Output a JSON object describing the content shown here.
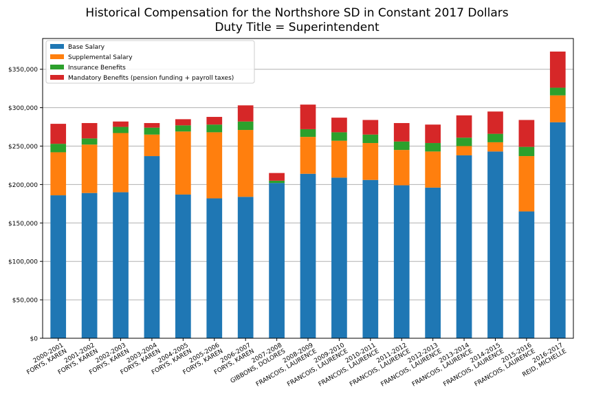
{
  "chart_data": {
    "type": "bar",
    "stacked": true,
    "title": "Historical Compensation for the Northshore SD in Constant 2017 Dollars",
    "subtitle": "Duty Title = Superintendent",
    "xlabel": "",
    "ylabel": "",
    "ylim": [
      0,
      390000
    ],
    "yticks": [
      0,
      50000,
      100000,
      150000,
      200000,
      250000,
      300000,
      350000
    ],
    "ytick_labels": [
      "$0",
      "$50,000",
      "$100,000",
      "$150,000",
      "$200,000",
      "$250,000",
      "$300,000",
      "$350,000"
    ],
    "grid": "horizontal",
    "legend_position": "top-left",
    "categories": [
      [
        "2000-2001",
        "FORYS, KAREN"
      ],
      [
        "2001-2002",
        "FORYS, KAREN"
      ],
      [
        "2002-2003",
        "FORYS, KAREN"
      ],
      [
        "2003-2004",
        "FORYS, KAREN"
      ],
      [
        "2004-2005",
        "FORYS, KAREN"
      ],
      [
        "2005-2006",
        "FORYS, KAREN"
      ],
      [
        "2006-2007",
        "FORYS, KAREN"
      ],
      [
        "2007-2008",
        "GIBBONS, DOLORES"
      ],
      [
        "2008-2009",
        "FRANCOIS, LAURENCE"
      ],
      [
        "2009-2010",
        "FRANCOIS, LAURENCE"
      ],
      [
        "2010-2011",
        "FRANCOIS, LAURENCE"
      ],
      [
        "2011-2012",
        "FRANCOIS, LAURENCE"
      ],
      [
        "2012-2013",
        "FRANCOIS, LAURENCE"
      ],
      [
        "2013-2014",
        "FRANCOIS, LAURENCE"
      ],
      [
        "2014-2015",
        "FRANCOIS, LAURENCE"
      ],
      [
        "2015-2016",
        "FRANCOIS, LAURENCE"
      ],
      [
        "2016-2017",
        "REID, MICHELLE"
      ]
    ],
    "series": [
      {
        "name": "Base Salary",
        "color": "#1f77b4",
        "values": [
          186000,
          189000,
          190000,
          237000,
          187000,
          182000,
          184000,
          202000,
          214000,
          209000,
          206000,
          199000,
          196000,
          238000,
          243000,
          165000,
          281000
        ]
      },
      {
        "name": "Supplemental Salary",
        "color": "#ff7f0e",
        "values": [
          56000,
          63000,
          77000,
          28000,
          82000,
          86000,
          87000,
          0,
          48000,
          48000,
          48000,
          46000,
          47000,
          12000,
          12000,
          72000,
          35000
        ]
      },
      {
        "name": "Insurance Benefits",
        "color": "#2ca02c",
        "values": [
          11000,
          8000,
          8000,
          9000,
          8000,
          10000,
          11000,
          3000,
          10000,
          11000,
          11000,
          11000,
          11000,
          11000,
          11000,
          12000,
          10000
        ]
      },
      {
        "name": "Mandatory Benefits (pension funding + payroll taxes)",
        "color": "#d62728",
        "values": [
          26000,
          20000,
          7000,
          6000,
          8000,
          10000,
          21000,
          10000,
          32000,
          19000,
          19000,
          24000,
          24000,
          29000,
          29000,
          35000,
          47000
        ]
      }
    ]
  }
}
